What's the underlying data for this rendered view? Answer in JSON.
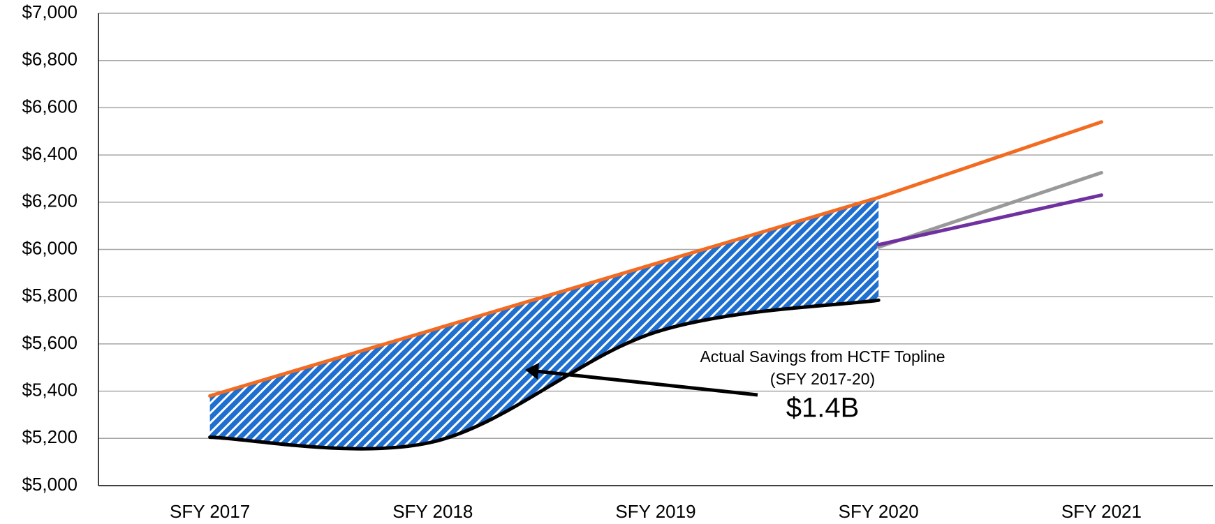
{
  "chart_data": {
    "type": "line",
    "categories": [
      "SFY 2017",
      "SFY 2018",
      "SFY 2019",
      "SFY 2020",
      "SFY 2021"
    ],
    "series": [
      {
        "color": "#f26b21",
        "values": [
          5380,
          5660,
          5940,
          6220,
          6540
        ]
      },
      {
        "color": "#000000",
        "values": [
          5205,
          5185,
          5650,
          5785,
          null
        ],
        "smooth": true
      },
      {
        "color": "#999999",
        "values": [
          null,
          null,
          null,
          6010,
          6325
        ]
      },
      {
        "color": "#7030a0",
        "values": [
          null,
          null,
          null,
          6020,
          6230
        ]
      }
    ],
    "ylim": [
      5000,
      7000
    ],
    "yticks": [
      {
        "value": 5000,
        "label": "$5,000"
      },
      {
        "value": 5200,
        "label": "$5,200"
      },
      {
        "value": 5400,
        "label": "$5,400"
      },
      {
        "value": 5600,
        "label": "$5,600"
      },
      {
        "value": 5800,
        "label": "$5,800"
      },
      {
        "value": 6000,
        "label": "$6,000"
      },
      {
        "value": 6200,
        "label": "$6,200"
      },
      {
        "value": 6400,
        "label": "$6,400"
      },
      {
        "value": 6600,
        "label": "$6,600"
      },
      {
        "value": 6800,
        "label": "$6,800"
      },
      {
        "value": 7000,
        "label": "$7,000"
      }
    ],
    "grid": true,
    "annotations": [
      "Actual Savings from HCTF Topline",
      "(SFY 2017-20)",
      "$1.4B"
    ]
  }
}
